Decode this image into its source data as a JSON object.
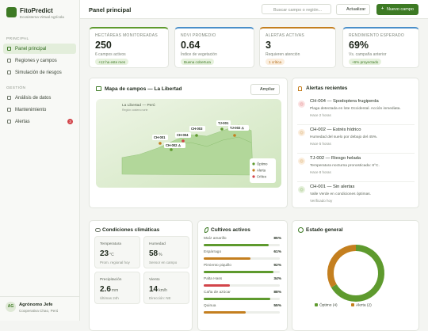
{
  "brand": {
    "name": "FitoPredict",
    "tagline": "Ecosistema Virtual Agrícola"
  },
  "nav": {
    "sections": [
      {
        "title": "PRINCIPAL",
        "items": [
          "Panel principal",
          "Regiones y campos",
          "Simulación de riesgos"
        ]
      },
      {
        "title": "GESTIÓN",
        "items": [
          "Análisis de datos",
          "Mantenimiento",
          "Alertas"
        ]
      }
    ],
    "alert_badge": "3"
  },
  "user": {
    "initials": "AG",
    "name": "Agrónomo Jefe",
    "org": "Cooperativa Chao, Perú"
  },
  "header": {
    "title": "Panel principal",
    "search_placeholder": "Buscar campo o región...",
    "refresh": "Actualizar",
    "new": "Nuevo campo"
  },
  "kpis": [
    {
      "label": "HECTÁREAS MONITOREADAS",
      "value": "250",
      "sub": "6 campos activos",
      "chip": "+12 ha este mes"
    },
    {
      "label": "NDVI PROMEDIO",
      "value": "0.64",
      "sub": "Índice de vegetación",
      "chip": "Buena cobertura"
    },
    {
      "label": "ALERTAS ACTIVAS",
      "value": "3",
      "sub": "Requieren atención",
      "chip": "1 crítica"
    },
    {
      "label": "RENDIMIENTO ESPERADO",
      "value": "69%",
      "sub": "Vs. campaña anterior",
      "chip": "+6% proyectado"
    }
  ],
  "map": {
    "title": "Mapa de campos — La Libertad",
    "expand": "Ampliar",
    "region": "La Libertad — Perú",
    "subregion": "Región costera norte",
    "fields": [
      "CH-001",
      "CH-002 ⚠",
      "CH-004",
      "CH-003",
      "TJ-001",
      "TJ-002 ⚠"
    ],
    "legend": [
      "Óptimo",
      "Alerta",
      "Crítico"
    ]
  },
  "alerts": {
    "title": "Alertas recientes",
    "items": [
      {
        "title": "CH-004 — Spodoptera frugiperda",
        "text": "Plaga detectada en lote Occidental. Acción inmediata.",
        "time": "Hace 2 horas"
      },
      {
        "title": "CH-002 — Estrés hídrico",
        "text": "Humedad del suelo por debajo del 45%.",
        "time": "Hace 5 horas"
      },
      {
        "title": "TJ-002 — Riesgo helada",
        "text": "Temperatura nocturna pronosticada: 8°C.",
        "time": "Hace 8 horas"
      },
      {
        "title": "CH-001 — Sin alertas",
        "text": "Valle Verde en condiciones óptimas.",
        "time": "Verificado hoy"
      }
    ]
  },
  "climate": {
    "title": "Condiciones climáticas",
    "items": [
      {
        "label": "Temperatura",
        "value": "23",
        "unit": "°C",
        "note": "Prom. regional hoy"
      },
      {
        "label": "Humedad",
        "value": "58",
        "unit": "%",
        "note": "Sensor en campo"
      },
      {
        "label": "Precipitación",
        "value": "2.6",
        "unit": "mm",
        "note": "Últimas 24h"
      },
      {
        "label": "Viento",
        "value": "14",
        "unit": "km/h",
        "note": "Dirección: NE"
      }
    ]
  },
  "crops": {
    "title": "Cultivos activos",
    "xlim": [
      0,
      100
    ],
    "items": [
      {
        "name": "Maíz amarillo",
        "value": 85,
        "value_label": "85%",
        "color": "#5e9a2e"
      },
      {
        "name": "Espárrago",
        "value": 61,
        "value_label": "61%",
        "color": "#c47f1f"
      },
      {
        "name": "Pimiento piquillo",
        "value": 92,
        "value_label": "92%",
        "color": "#5e9a2e"
      },
      {
        "name": "Palta Hass",
        "value": 34,
        "value_label": "34%",
        "color": "#d2454a"
      },
      {
        "name": "Caña de azúcar",
        "value": 88,
        "value_label": "88%",
        "color": "#5e9a2e"
      },
      {
        "name": "Quinua",
        "value": 55,
        "value_label": "55%",
        "color": "#c47f1f"
      }
    ]
  },
  "status": {
    "title": "Estado general",
    "segments": [
      {
        "label": "Óptimo (4)",
        "value": 4,
        "color": "#5e9a2e"
      },
      {
        "label": "Alerta (2)",
        "value": 2,
        "color": "#c47f1f"
      }
    ]
  }
}
